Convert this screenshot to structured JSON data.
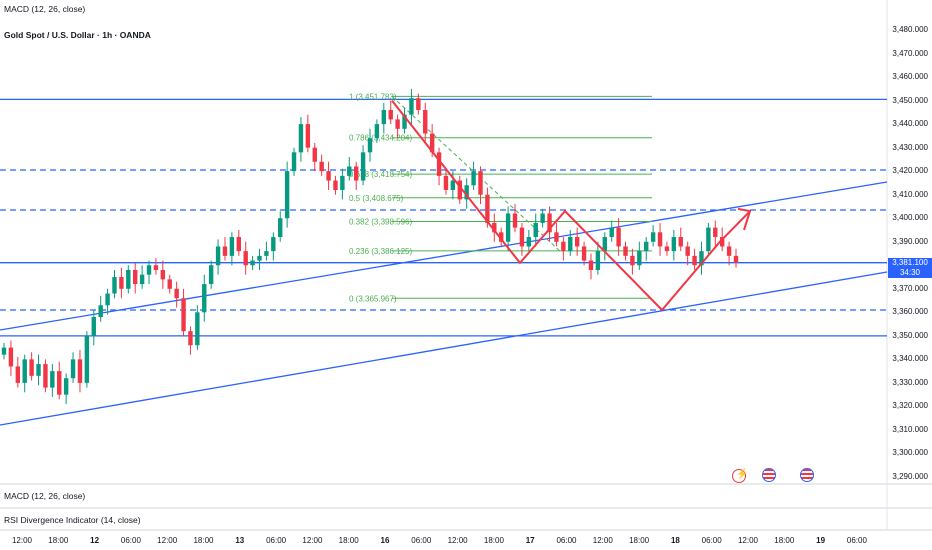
{
  "header": {
    "indicator_top": "MACD (12, 26, close)",
    "symbol": "Gold Spot / U.S. Dollar · 1h · OANDA"
  },
  "bottom_panes": {
    "macd": "MACD (12, 26, close)",
    "rsi": "RSI Divergence Indicator (14, close)"
  },
  "price_axis": [
    "3,480.000",
    "3,470.000",
    "3,460.000",
    "3,450.000",
    "3,440.000",
    "3,430.000",
    "3,420.000",
    "3,410.000",
    "3,400.000",
    "3,390.000",
    "3,380.000",
    "3,370.000",
    "3,360.000",
    "3,350.000",
    "3,340.000",
    "3,330.000",
    "3,320.000",
    "3,310.000",
    "3,300.000",
    "3,290.000"
  ],
  "time_axis": [
    "12:00",
    "18:00",
    "12",
    "06:00",
    "12:00",
    "18:00",
    "13",
    "06:00",
    "12:00",
    "18:00",
    "16",
    "06:00",
    "12:00",
    "18:00",
    "17",
    "06:00",
    "12:00",
    "18:00",
    "18",
    "06:00",
    "12:00",
    "18:00",
    "19",
    "06:00"
  ],
  "last_price": {
    "value": "3,381.100",
    "countdown": "34:30",
    "color": "#2962ff"
  },
  "fib_levels": [
    {
      "label": "1 (3,451.783)",
      "price": 3451.783
    },
    {
      "label": "0.786 (3,434.204)",
      "price": 3434.204
    },
    {
      "label": "0.618 (3,418.754)",
      "price": 3418.754
    },
    {
      "label": "0.5 (3,408.675)",
      "price": 3408.675
    },
    {
      "label": "0.382 (3,398.596)",
      "price": 3398.596
    },
    {
      "label": "0.236 (3,386.125)",
      "price": 3386.125
    },
    {
      "label": "0 (3,365.967)",
      "price": 3365.967
    }
  ],
  "colors": {
    "up": "#089981",
    "down": "#f23645",
    "level_line": "#2962ff",
    "fib": "#4caf50",
    "projection": "#f23645"
  },
  "events": [
    {
      "icon": "lightning-event-icon"
    },
    {
      "icon": "us-flag-event-icon"
    },
    {
      "icon": "us-flag-event-icon"
    }
  ],
  "chart_data": {
    "type": "candlestick",
    "title": "Gold Spot / U.S. Dollar · 1h · OANDA",
    "ylim": [
      3290,
      3480
    ],
    "horizontal_levels": [
      3450.5,
      3420.5,
      3403.5,
      3381.1,
      3361,
      3350
    ],
    "closes": [
      3345,
      3337,
      3330,
      3340,
      3333,
      3338,
      3328,
      3335,
      3325,
      3332,
      3340,
      3330,
      3350,
      3358,
      3363,
      3368,
      3375,
      3370,
      3378,
      3372,
      3376,
      3380,
      3378,
      3374,
      3370,
      3366,
      3352,
      3346,
      3360,
      3372,
      3380,
      3388,
      3384,
      3392,
      3386,
      3380,
      3382,
      3384,
      3386,
      3392,
      3400,
      3420,
      3428,
      3440,
      3430,
      3424,
      3420,
      3416,
      3412,
      3418,
      3422,
      3416,
      3428,
      3434,
      3440,
      3446,
      3442,
      3438,
      3444,
      3451,
      3446,
      3436,
      3428,
      3418,
      3412,
      3416,
      3408,
      3414,
      3420,
      3410,
      3398,
      3394,
      3390,
      3402,
      3396,
      3388,
      3392,
      3398,
      3402,
      3394,
      3390,
      3386,
      3392,
      3388,
      3382,
      3378,
      3386,
      3392,
      3396,
      3388,
      3384,
      3380,
      3386,
      3390,
      3394,
      3388,
      3386,
      3392,
      3388,
      3384,
      3380,
      3386,
      3396,
      3392,
      3388,
      3384,
      3381
    ]
  }
}
